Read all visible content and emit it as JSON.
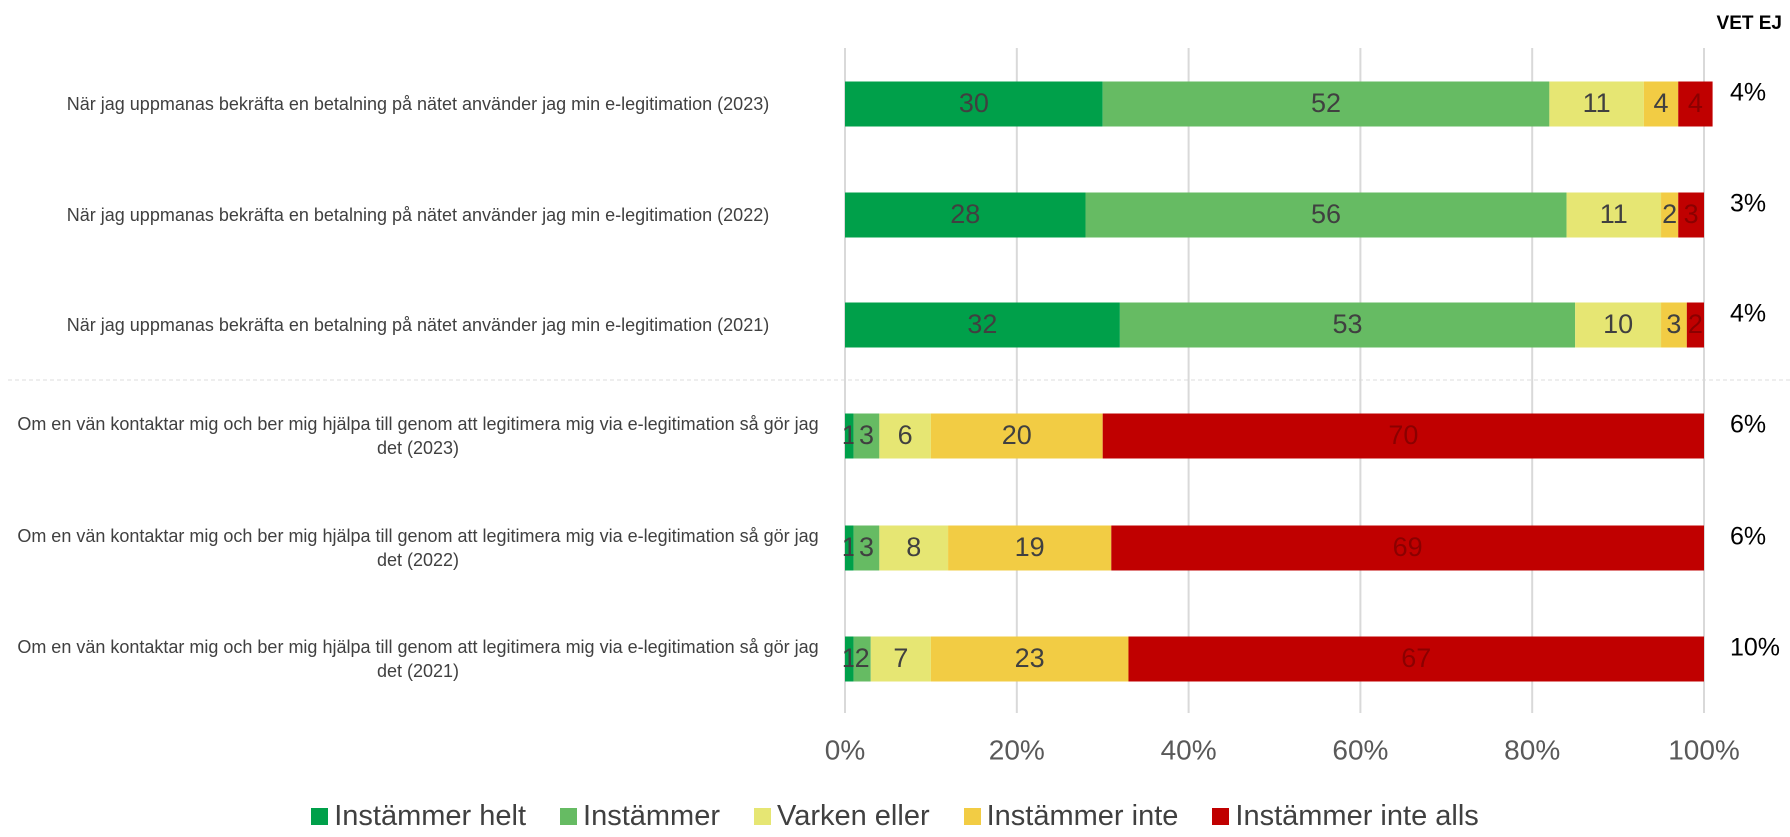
{
  "chart_data": {
    "type": "stacked_bar_horizontal",
    "categories": [
      "När jag uppmanas bekräfta en betalning på nätet använder jag min e-legitimation (2023)",
      "När jag uppmanas bekräfta en betalning på nätet använder jag min e-legitimation (2022)",
      "När jag uppmanas bekräfta en betalning på nätet använder jag min e-legitimation (2021)",
      "Om en vän kontaktar mig och ber mig hjälpa till genom att legitimera mig via e-legitimation så gör jag det (2023)",
      "Om en vän kontaktar mig och ber mig hjälpa till genom att legitimera mig via e-legitimation så gör jag det (2022)",
      "Om en vän kontaktar mig och ber mig hjälpa till genom att legitimera mig via e-legitimation så gör jag det (2021)"
    ],
    "series": [
      {
        "name": "Instämmer helt",
        "color": "#00a04a",
        "values": [
          30,
          28,
          32,
          1,
          1,
          1
        ]
      },
      {
        "name": "Instämmer",
        "color": "#66bb63",
        "values": [
          52,
          56,
          53,
          3,
          3,
          2
        ]
      },
      {
        "name": "Varken eller",
        "color": "#e6e673",
        "values": [
          11,
          11,
          10,
          6,
          8,
          7
        ]
      },
      {
        "name": "Instämmer inte",
        "color": "#f2cc44",
        "values": [
          4,
          2,
          3,
          20,
          19,
          23
        ]
      },
      {
        "name": "Instämmer inte alls",
        "color": "#c00000",
        "values": [
          4,
          3,
          2,
          70,
          69,
          67
        ]
      }
    ],
    "xlim": [
      0,
      100
    ],
    "xticks": [
      {
        "value": 0,
        "label": "0%"
      },
      {
        "value": 20,
        "label": "20%"
      },
      {
        "value": 40,
        "label": "40%"
      },
      {
        "value": 60,
        "label": "60%"
      },
      {
        "value": 80,
        "label": "80%"
      },
      {
        "value": 100,
        "label": "100%"
      }
    ],
    "grid": true,
    "legend": "bottom",
    "vet_ej": {
      "title": "VET EJ",
      "values": [
        4,
        3,
        4,
        6,
        6,
        10
      ],
      "value_labels": [
        "4%",
        "3%",
        "4%",
        "6%",
        "6%",
        "10%"
      ]
    }
  }
}
